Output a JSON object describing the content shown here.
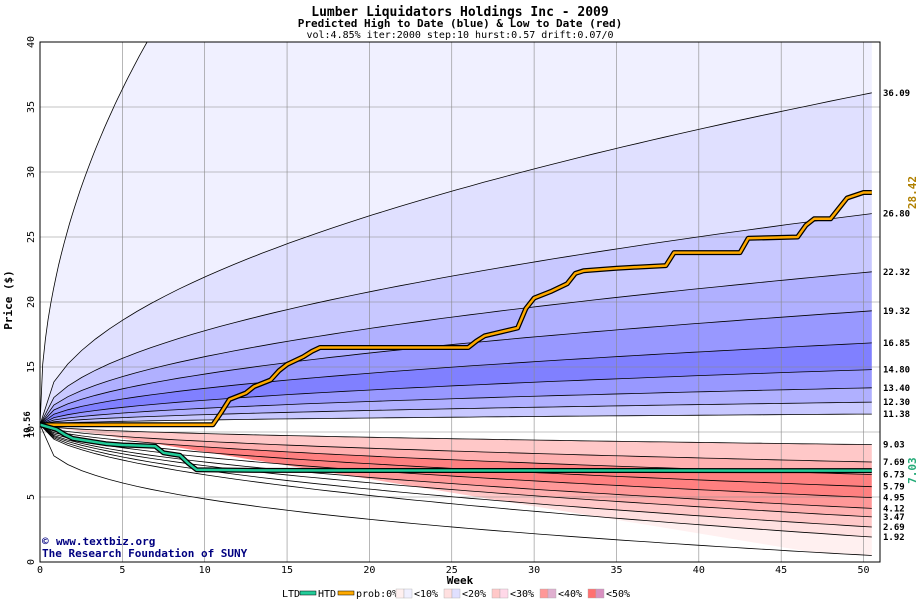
{
  "title": "Lumber Liquidators Holdings Inc - 2009",
  "subtitle": "Predicted High to Date (blue) &  Low to Date (red)",
  "params": "vol:4.85% iter:2000 step:10 hurst:0.57 drift:0.07/0",
  "credit_line1": "www.textbiz.org",
  "credit_copyright": "©",
  "credit_line2": "The Research Foundation of SUNY",
  "legend": {
    "ltd_label": "LTD",
    "htd_label": "HTD",
    "prob_label": "prob:0%",
    "items": [
      "<10%",
      "<20%",
      "<30%",
      "<40%",
      "<50%"
    ]
  },
  "colors": {
    "ltd_line": "#22cc99",
    "htd_line": "#ffaa00",
    "blue_bands": [
      "#f0f0ff",
      "#e0e0ff",
      "#c8c8ff",
      "#b0b0ff",
      "#9898ff",
      "#8080ff"
    ],
    "red_bands": [
      "#fff0f0",
      "#ffe0e0",
      "#ffc8c8",
      "#ffb0b0",
      "#ff9898",
      "#ff8080"
    ]
  },
  "chart_data": {
    "type": "line",
    "title": "Lumber Liquidators Holdings Inc - 2009",
    "subtitle": "Predicted High to Date (blue) &  Low to Date (red)",
    "xlabel": "Week",
    "ylabel": "Price ($)",
    "xlim": [
      0,
      51
    ],
    "ylim": [
      0,
      40
    ],
    "xticks": [
      0,
      5,
      10,
      15,
      20,
      25,
      30,
      35,
      40,
      45,
      50
    ],
    "yticks": [
      0,
      5,
      10,
      15,
      20,
      25,
      30,
      35,
      40
    ],
    "grid": true,
    "start_price": 10.56,
    "start_label": "10.56",
    "htd_final": 28.42,
    "htd_final_label": "28.42",
    "ltd_final": 7.03,
    "ltd_final_label": "7.03",
    "upper_quantiles": [
      {
        "label": "36.09",
        "value": 36.09
      },
      {
        "label": "26.80",
        "value": 26.8
      },
      {
        "label": "22.32",
        "value": 22.32
      },
      {
        "label": "19.32",
        "value": 19.32
      },
      {
        "label": "16.85",
        "value": 16.85
      },
      {
        "label": "14.80",
        "value": 14.8
      },
      {
        "label": "13.40",
        "value": 13.4
      },
      {
        "label": "12.30",
        "value": 12.3
      },
      {
        "label": "11.38",
        "value": 11.38
      }
    ],
    "lower_quantiles": [
      {
        "label": "9.03",
        "value": 9.03
      },
      {
        "label": "7.69",
        "value": 7.69
      },
      {
        "label": "6.73",
        "value": 6.73
      },
      {
        "label": "5.79",
        "value": 5.79
      },
      {
        "label": "4.95",
        "value": 4.95
      },
      {
        "label": "4.12",
        "value": 4.12
      },
      {
        "label": "3.47",
        "value": 3.47
      },
      {
        "label": "2.69",
        "value": 2.69
      },
      {
        "label": "1.92",
        "value": 1.92
      }
    ],
    "upper_envelope_end": 40,
    "lower_envelope_end": 0.5,
    "htd_series": [
      [
        0,
        10.56
      ],
      [
        10.5,
        10.56
      ],
      [
        11,
        11.5
      ],
      [
        11.5,
        12.5
      ],
      [
        12.5,
        13.0
      ],
      [
        13,
        13.5
      ],
      [
        14,
        14.0
      ],
      [
        14.5,
        14.7
      ],
      [
        15,
        15.2
      ],
      [
        16,
        15.8
      ],
      [
        16.5,
        16.2
      ],
      [
        17,
        16.5
      ],
      [
        26,
        16.5
      ],
      [
        26.5,
        17.0
      ],
      [
        27,
        17.4
      ],
      [
        28,
        17.7
      ],
      [
        29,
        18.0
      ],
      [
        29.5,
        19.5
      ],
      [
        30,
        20.3
      ],
      [
        31,
        20.8
      ],
      [
        32,
        21.4
      ],
      [
        32.5,
        22.2
      ],
      [
        33,
        22.4
      ],
      [
        35,
        22.6
      ],
      [
        38,
        22.8
      ],
      [
        38.5,
        23.8
      ],
      [
        42.5,
        23.8
      ],
      [
        43,
        24.9
      ],
      [
        46,
        25.0
      ],
      [
        46.5,
        25.9
      ],
      [
        47,
        26.4
      ],
      [
        48,
        26.4
      ],
      [
        48.5,
        27.2
      ],
      [
        49,
        28.0
      ],
      [
        50,
        28.42
      ],
      [
        50.5,
        28.42
      ]
    ],
    "ltd_series": [
      [
        0,
        10.56
      ],
      [
        1,
        10.2
      ],
      [
        1.5,
        9.8
      ],
      [
        2,
        9.5
      ],
      [
        3,
        9.3
      ],
      [
        4,
        9.1
      ],
      [
        5,
        9.0
      ],
      [
        7,
        8.9
      ],
      [
        7.5,
        8.4
      ],
      [
        8,
        8.3
      ],
      [
        8.5,
        8.2
      ],
      [
        9,
        7.6
      ],
      [
        9.5,
        7.1
      ],
      [
        13,
        7.05
      ],
      [
        50.5,
        7.03
      ]
    ]
  }
}
